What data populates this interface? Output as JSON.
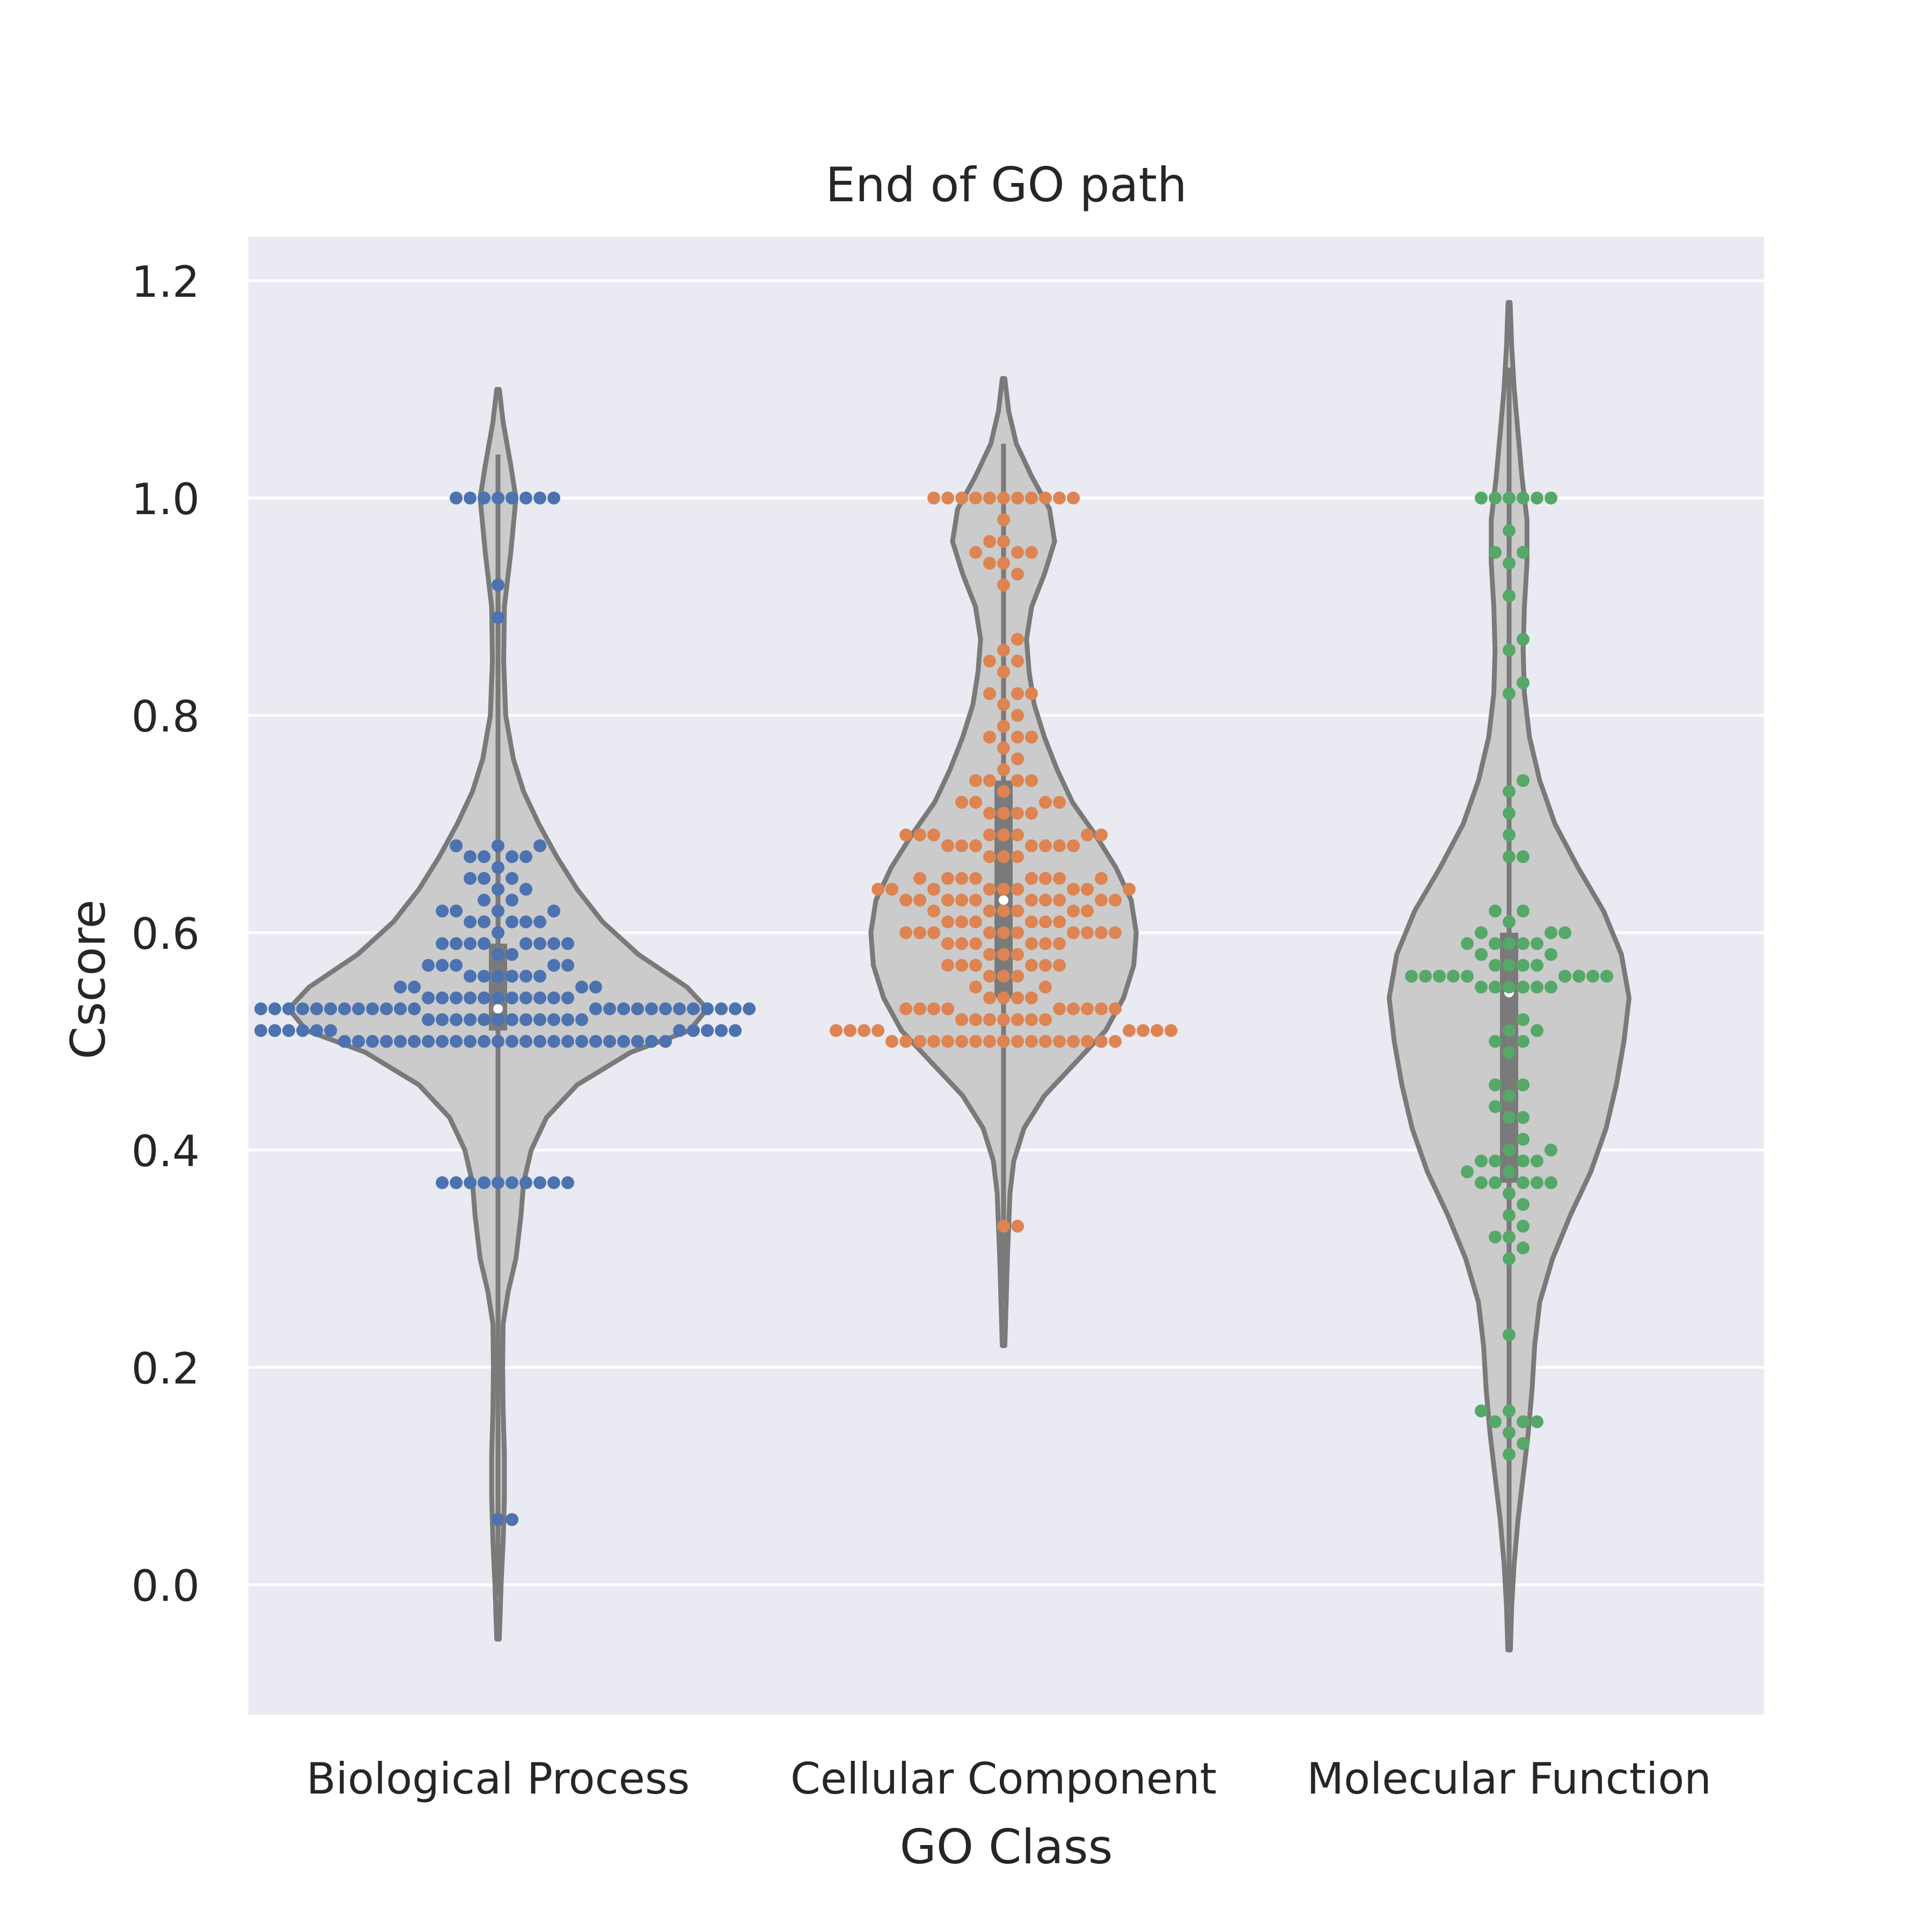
{
  "chart_data": {
    "type": "violin",
    "title": "End of GO path",
    "xlabel": "GO Class",
    "ylabel": "Cscore",
    "ylim": [
      -0.12,
      1.24
    ],
    "yticks": [
      "0.0",
      "0.2",
      "0.4",
      "0.6",
      "0.8",
      "1.0",
      "1.2"
    ],
    "categories": [
      "Biological Process",
      "Cellular Component",
      "Molecular Function"
    ],
    "grid": true,
    "overlay": "swarm",
    "colors": {
      "background": "#eaeaf2",
      "grid": "#ffffff",
      "violin_fill": "#cbcbcb",
      "violin_edge": "#7a7a7a",
      "median": "#ffffff"
    },
    "series": [
      {
        "category": "Biological Process",
        "color": "#4c72b0",
        "median": 0.53,
        "q1": 0.51,
        "q3": 0.59,
        "range": [
          -0.05,
          1.1
        ],
        "density": [
          [
            -0.05,
            0.005
          ],
          [
            0.0,
            0.012
          ],
          [
            0.04,
            0.02
          ],
          [
            0.08,
            0.025
          ],
          [
            0.12,
            0.025
          ],
          [
            0.16,
            0.02
          ],
          [
            0.2,
            0.018
          ],
          [
            0.24,
            0.02
          ],
          [
            0.27,
            0.04
          ],
          [
            0.3,
            0.07
          ],
          [
            0.34,
            0.09
          ],
          [
            0.37,
            0.1
          ],
          [
            0.4,
            0.13
          ],
          [
            0.43,
            0.19
          ],
          [
            0.46,
            0.31
          ],
          [
            0.49,
            0.52
          ],
          [
            0.51,
            0.75
          ],
          [
            0.53,
            0.82
          ],
          [
            0.55,
            0.74
          ],
          [
            0.58,
            0.55
          ],
          [
            0.61,
            0.41
          ],
          [
            0.64,
            0.31
          ],
          [
            0.67,
            0.23
          ],
          [
            0.7,
            0.16
          ],
          [
            0.73,
            0.1
          ],
          [
            0.76,
            0.06
          ],
          [
            0.8,
            0.03
          ],
          [
            0.85,
            0.022
          ],
          [
            0.9,
            0.025
          ],
          [
            0.95,
            0.05
          ],
          [
            1.0,
            0.07
          ],
          [
            1.03,
            0.05
          ],
          [
            1.07,
            0.02
          ],
          [
            1.1,
            0.005
          ]
        ],
        "values": [
          0.06,
          0.06,
          0.37,
          0.37,
          0.37,
          0.37,
          0.37,
          0.37,
          0.37,
          0.37,
          0.37,
          0.37,
          0.5,
          0.5,
          0.5,
          0.5,
          0.5,
          0.5,
          0.5,
          0.5,
          0.5,
          0.5,
          0.5,
          0.5,
          0.5,
          0.5,
          0.5,
          0.5,
          0.5,
          0.5,
          0.5,
          0.5,
          0.5,
          0.5,
          0.5,
          0.5,
          0.51,
          0.51,
          0.51,
          0.51,
          0.51,
          0.51,
          0.51,
          0.51,
          0.51,
          0.51,
          0.51,
          0.52,
          0.52,
          0.52,
          0.52,
          0.52,
          0.52,
          0.52,
          0.52,
          0.52,
          0.52,
          0.52,
          0.52,
          0.53,
          0.53,
          0.53,
          0.53,
          0.53,
          0.53,
          0.53,
          0.53,
          0.53,
          0.53,
          0.53,
          0.53,
          0.53,
          0.53,
          0.53,
          0.53,
          0.53,
          0.53,
          0.53,
          0.53,
          0.53,
          0.53,
          0.53,
          0.53,
          0.54,
          0.54,
          0.54,
          0.54,
          0.54,
          0.54,
          0.54,
          0.54,
          0.54,
          0.54,
          0.54,
          0.55,
          0.55,
          0.55,
          0.55,
          0.56,
          0.56,
          0.56,
          0.56,
          0.56,
          0.56,
          0.57,
          0.57,
          0.57,
          0.57,
          0.57,
          0.58,
          0.58,
          0.59,
          0.59,
          0.59,
          0.59,
          0.59,
          0.59,
          0.59,
          0.59,
          0.6,
          0.61,
          0.61,
          0.61,
          0.61,
          0.61,
          0.62,
          0.62,
          0.62,
          0.62,
          0.63,
          0.63,
          0.64,
          0.64,
          0.65,
          0.65,
          0.65,
          0.66,
          0.67,
          0.67,
          0.67,
          0.67,
          0.68,
          0.68,
          0.68,
          0.89,
          0.92,
          1.0,
          1.0,
          1.0,
          1.0,
          1.0,
          1.0,
          1.0,
          1.0
        ]
      },
      {
        "category": "Cellular Component",
        "color": "#dd8452",
        "median": 0.63,
        "q1": 0.54,
        "q3": 0.74,
        "range": [
          0.22,
          1.11
        ],
        "density": [
          [
            0.22,
            0.005
          ],
          [
            0.26,
            0.01
          ],
          [
            0.3,
            0.015
          ],
          [
            0.33,
            0.02
          ],
          [
            0.36,
            0.025
          ],
          [
            0.39,
            0.04
          ],
          [
            0.42,
            0.08
          ],
          [
            0.45,
            0.16
          ],
          [
            0.48,
            0.28
          ],
          [
            0.51,
            0.4
          ],
          [
            0.54,
            0.47
          ],
          [
            0.57,
            0.51
          ],
          [
            0.6,
            0.52
          ],
          [
            0.63,
            0.5
          ],
          [
            0.66,
            0.44
          ],
          [
            0.69,
            0.36
          ],
          [
            0.72,
            0.27
          ],
          [
            0.75,
            0.21
          ],
          [
            0.78,
            0.16
          ],
          [
            0.81,
            0.12
          ],
          [
            0.84,
            0.1
          ],
          [
            0.87,
            0.09
          ],
          [
            0.9,
            0.11
          ],
          [
            0.93,
            0.16
          ],
          [
            0.96,
            0.2
          ],
          [
            0.99,
            0.18
          ],
          [
            1.02,
            0.11
          ],
          [
            1.05,
            0.05
          ],
          [
            1.08,
            0.02
          ],
          [
            1.11,
            0.005
          ]
        ],
        "values": [
          0.33,
          0.33,
          0.5,
          0.5,
          0.5,
          0.5,
          0.5,
          0.5,
          0.5,
          0.5,
          0.5,
          0.5,
          0.5,
          0.5,
          0.5,
          0.5,
          0.5,
          0.5,
          0.5,
          0.51,
          0.51,
          0.51,
          0.51,
          0.51,
          0.51,
          0.51,
          0.51,
          0.52,
          0.52,
          0.52,
          0.52,
          0.52,
          0.52,
          0.52,
          0.53,
          0.53,
          0.53,
          0.53,
          0.53,
          0.53,
          0.53,
          0.53,
          0.53,
          0.54,
          0.54,
          0.54,
          0.54,
          0.55,
          0.55,
          0.56,
          0.56,
          0.56,
          0.57,
          0.57,
          0.57,
          0.57,
          0.57,
          0.57,
          0.58,
          0.58,
          0.58,
          0.59,
          0.59,
          0.59,
          0.59,
          0.59,
          0.59,
          0.6,
          0.6,
          0.6,
          0.6,
          0.6,
          0.6,
          0.6,
          0.6,
          0.6,
          0.6,
          0.61,
          0.61,
          0.61,
          0.61,
          0.61,
          0.61,
          0.62,
          0.62,
          0.62,
          0.62,
          0.62,
          0.62,
          0.63,
          0.63,
          0.63,
          0.63,
          0.63,
          0.63,
          0.63,
          0.63,
          0.63,
          0.63,
          0.64,
          0.64,
          0.64,
          0.64,
          0.64,
          0.64,
          0.64,
          0.64,
          0.64,
          0.65,
          0.65,
          0.65,
          0.65,
          0.65,
          0.65,
          0.65,
          0.65,
          0.67,
          0.67,
          0.67,
          0.68,
          0.68,
          0.68,
          0.68,
          0.68,
          0.68,
          0.68,
          0.69,
          0.69,
          0.69,
          0.69,
          0.69,
          0.69,
          0.69,
          0.69,
          0.71,
          0.71,
          0.71,
          0.71,
          0.72,
          0.72,
          0.72,
          0.72,
          0.73,
          0.74,
          0.74,
          0.74,
          0.74,
          0.75,
          0.76,
          0.77,
          0.78,
          0.78,
          0.78,
          0.79,
          0.8,
          0.81,
          0.82,
          0.82,
          0.82,
          0.84,
          0.85,
          0.85,
          0.86,
          0.87,
          0.92,
          0.93,
          0.94,
          0.94,
          0.95,
          0.95,
          0.95,
          0.96,
          0.96,
          0.98,
          1.0,
          1.0,
          1.0,
          1.0,
          1.0,
          1.0,
          1.0,
          1.0,
          1.0,
          1.0,
          1.0
        ]
      },
      {
        "category": "Molecular Function",
        "color": "#55a868",
        "median": 0.545,
        "q1": 0.37,
        "q3": 0.6,
        "range": [
          -0.06,
          1.18
        ],
        "density": [
          [
            -0.06,
            0.005
          ],
          [
            -0.02,
            0.01
          ],
          [
            0.02,
            0.02
          ],
          [
            0.06,
            0.035
          ],
          [
            0.1,
            0.055
          ],
          [
            0.14,
            0.075
          ],
          [
            0.18,
            0.09
          ],
          [
            0.22,
            0.1
          ],
          [
            0.26,
            0.12
          ],
          [
            0.3,
            0.17
          ],
          [
            0.34,
            0.24
          ],
          [
            0.38,
            0.32
          ],
          [
            0.42,
            0.38
          ],
          [
            0.46,
            0.42
          ],
          [
            0.5,
            0.45
          ],
          [
            0.54,
            0.47
          ],
          [
            0.58,
            0.44
          ],
          [
            0.62,
            0.37
          ],
          [
            0.66,
            0.27
          ],
          [
            0.7,
            0.18
          ],
          [
            0.74,
            0.12
          ],
          [
            0.78,
            0.08
          ],
          [
            0.82,
            0.06
          ],
          [
            0.86,
            0.055
          ],
          [
            0.9,
            0.06
          ],
          [
            0.94,
            0.07
          ],
          [
            0.98,
            0.07
          ],
          [
            1.02,
            0.05
          ],
          [
            1.06,
            0.035
          ],
          [
            1.1,
            0.02
          ],
          [
            1.14,
            0.01
          ],
          [
            1.18,
            0.004
          ]
        ],
        "values": [
          0.12,
          0.13,
          0.14,
          0.15,
          0.15,
          0.15,
          0.16,
          0.16,
          0.23,
          0.3,
          0.31,
          0.32,
          0.32,
          0.33,
          0.34,
          0.35,
          0.36,
          0.37,
          0.37,
          0.37,
          0.37,
          0.37,
          0.38,
          0.38,
          0.39,
          0.39,
          0.39,
          0.39,
          0.4,
          0.4,
          0.41,
          0.43,
          0.43,
          0.44,
          0.45,
          0.46,
          0.46,
          0.49,
          0.5,
          0.5,
          0.51,
          0.51,
          0.52,
          0.55,
          0.55,
          0.55,
          0.55,
          0.55,
          0.55,
          0.56,
          0.56,
          0.56,
          0.56,
          0.56,
          0.56,
          0.56,
          0.56,
          0.56,
          0.57,
          0.57,
          0.57,
          0.57,
          0.58,
          0.58,
          0.59,
          0.59,
          0.59,
          0.59,
          0.59,
          0.6,
          0.6,
          0.6,
          0.61,
          0.62,
          0.62,
          0.67,
          0.67,
          0.69,
          0.71,
          0.73,
          0.74,
          0.82,
          0.83,
          0.86,
          0.87,
          0.91,
          0.94,
          0.95,
          0.95,
          0.97,
          1.0,
          1.0,
          1.0,
          1.0,
          1.0,
          1.0
        ]
      }
    ]
  }
}
